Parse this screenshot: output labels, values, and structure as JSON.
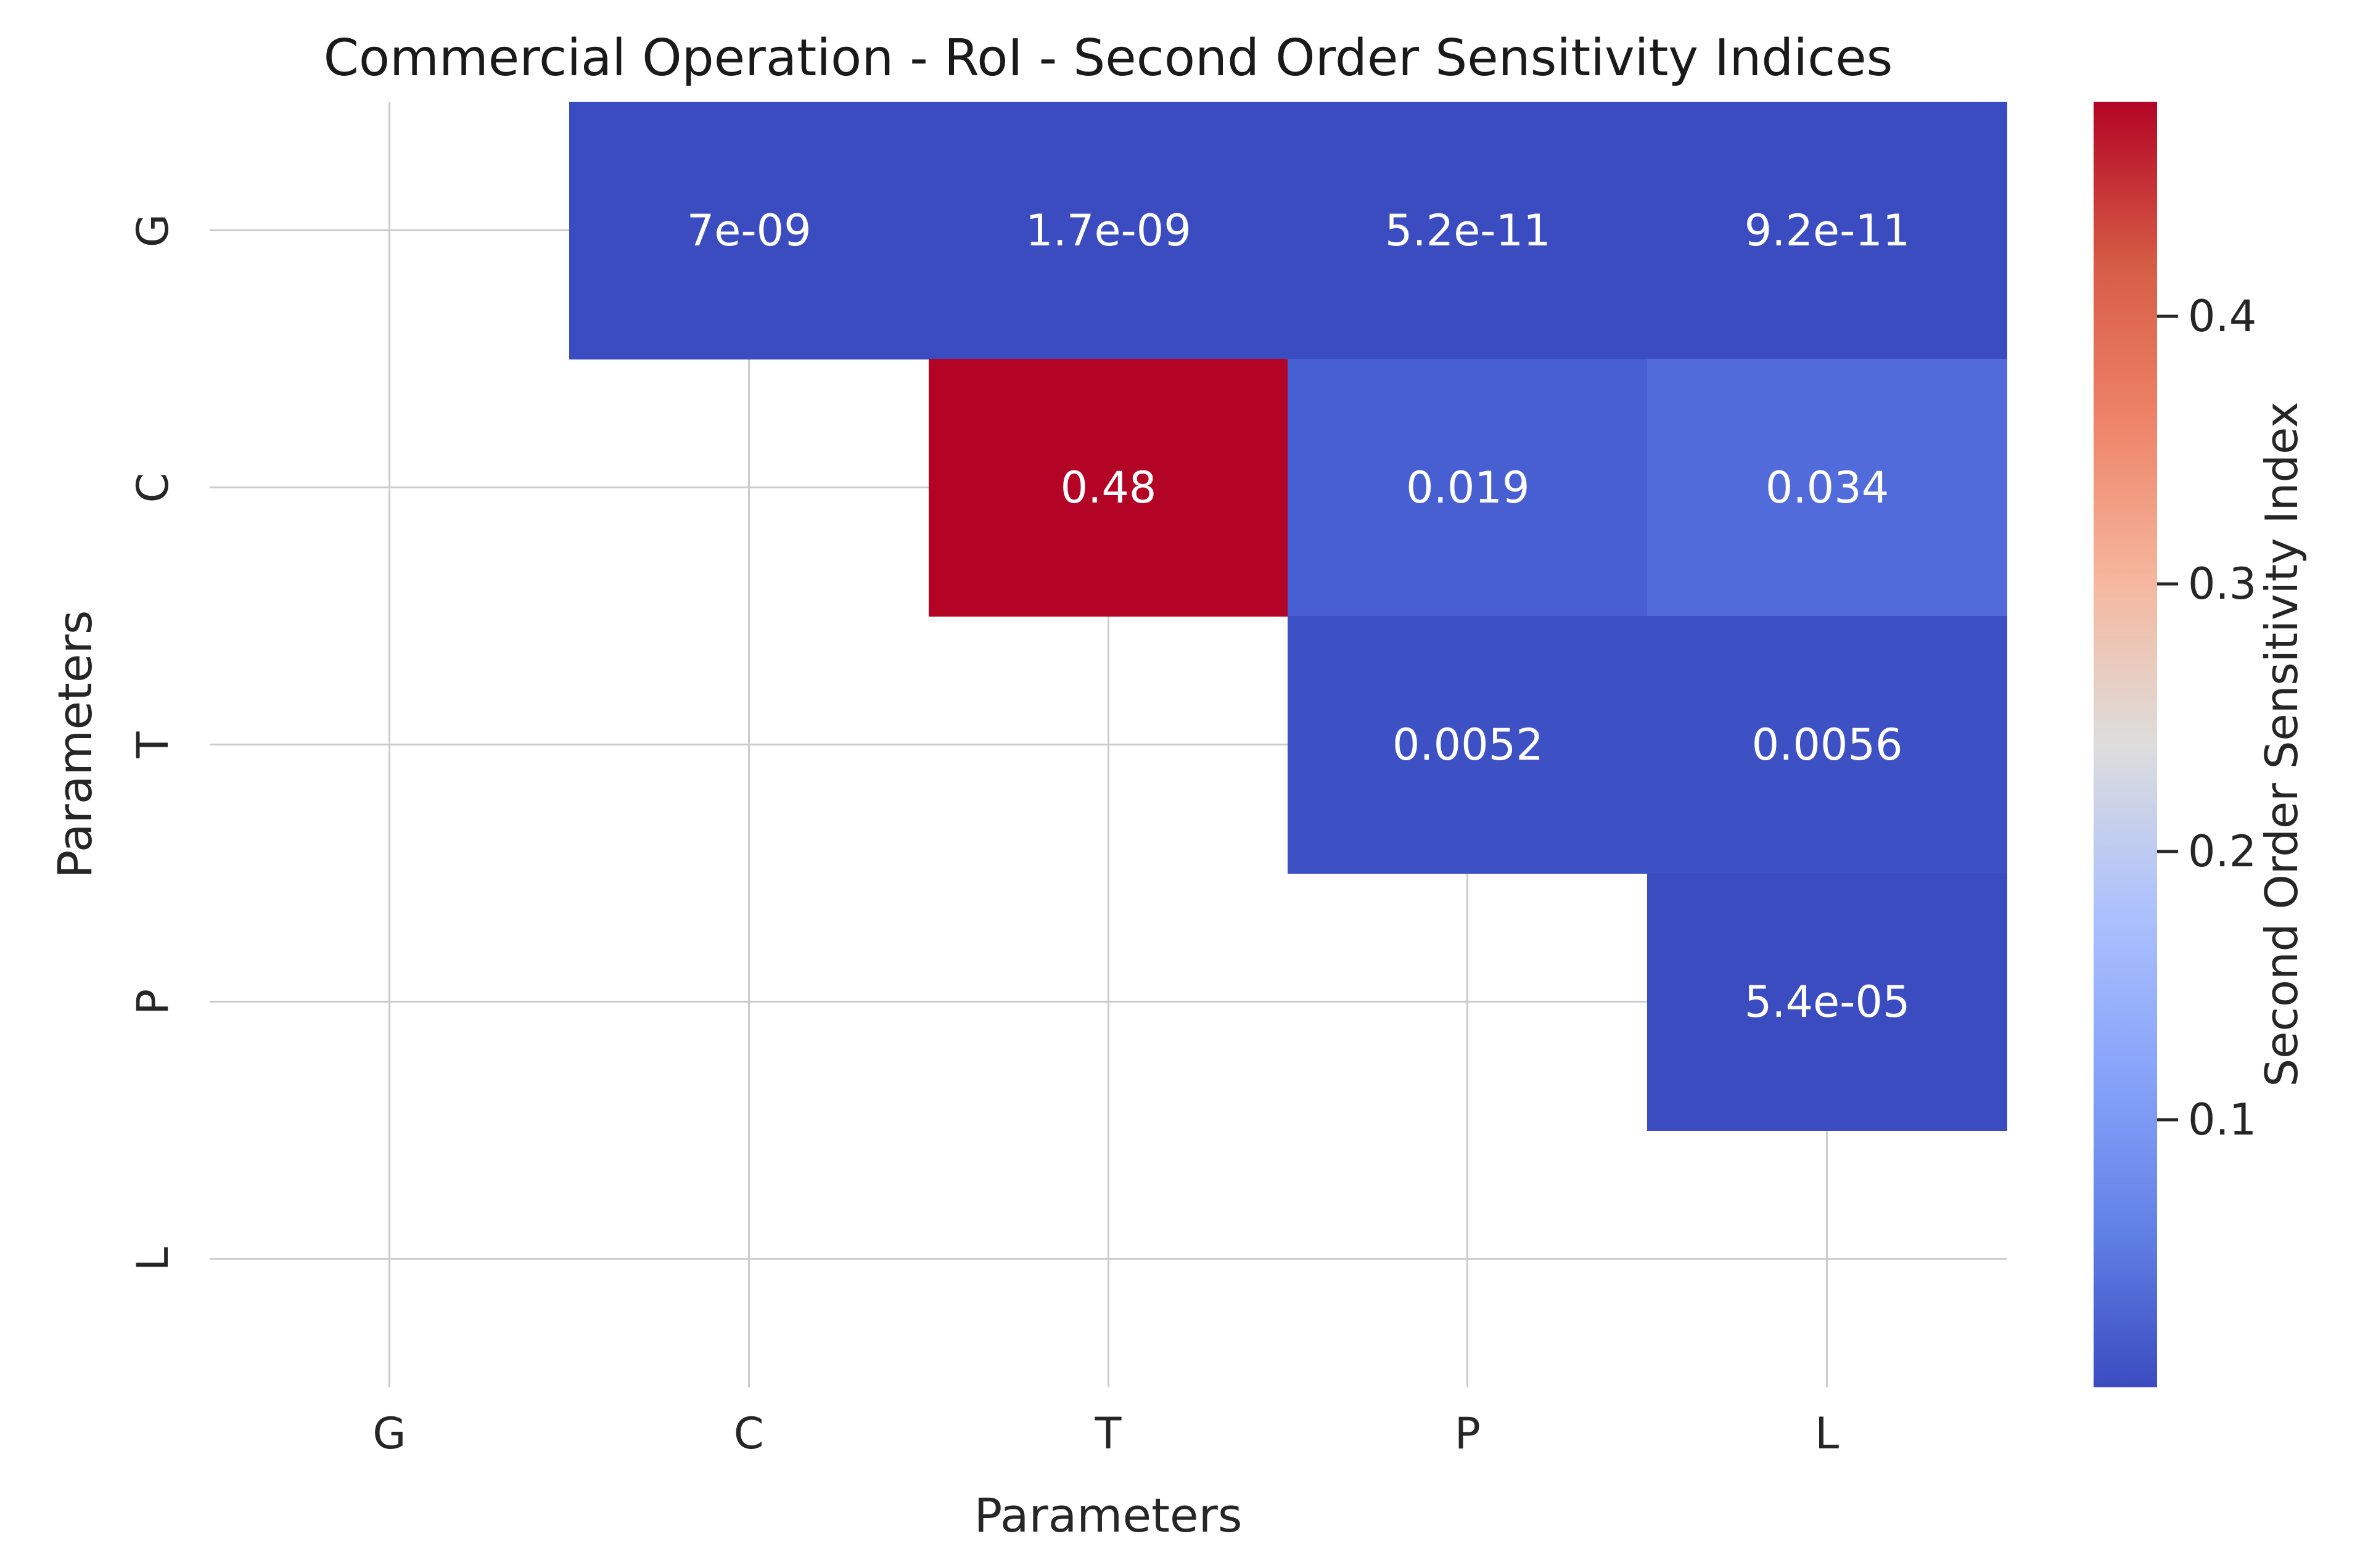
{
  "title": "Commercial Operation - RoI - Second Order Sensitivity Indices",
  "x_axis_label": "Parameters",
  "y_axis_label": "Parameters",
  "colorbar": {
    "label": "Second Order Sensitivity Index",
    "tick_labels": [
      "0.4",
      "0.3",
      "0.2",
      "0.1"
    ],
    "tick_values": [
      0.4,
      0.3,
      0.2,
      0.1
    ],
    "min": 0,
    "max": 0.48,
    "gradient_stops_bottom_to_top": [
      "#3B4CC0",
      "#6282E7",
      "#89A5FA",
      "#AEC2FC",
      "#DDDDDC",
      "#F5B89F",
      "#EE8468",
      "#D55C44",
      "#B40426"
    ]
  },
  "chart_data": {
    "type": "heatmap",
    "title": "Commercial Operation - RoI - Second Order Sensitivity Indices",
    "xlabel": "Parameters",
    "ylabel": "Parameters",
    "x_categories": [
      "G",
      "C",
      "T",
      "P",
      "L"
    ],
    "y_categories": [
      "G",
      "C",
      "T",
      "P",
      "L"
    ],
    "colormap": "coolwarm",
    "vmin": 0,
    "vmax": 0.48,
    "grid": true,
    "grid_color": "#CCCCCC",
    "background": "#FFFFFF",
    "annotation_color": "#FFFFFF",
    "colorbar_label": "Second Order Sensitivity Index",
    "colorbar_ticks": [
      0.1,
      0.2,
      0.3,
      0.4
    ],
    "mask": "lower-triangle-and-diagonal",
    "matrix": [
      [
        null,
        7e-09,
        1.7e-09,
        5.2e-11,
        9.2e-11
      ],
      [
        null,
        null,
        0.48,
        0.019,
        0.034
      ],
      [
        null,
        null,
        null,
        0.0052,
        0.0056
      ],
      [
        null,
        null,
        null,
        null,
        5.4e-05
      ],
      [
        null,
        null,
        null,
        null,
        null
      ]
    ],
    "cells": [
      {
        "row": "G",
        "col": "C",
        "label": "7e-09",
        "value": 7e-09,
        "color": "#3B4CC0"
      },
      {
        "row": "G",
        "col": "T",
        "label": "1.7e-09",
        "value": 1.7e-09,
        "color": "#3B4CC0"
      },
      {
        "row": "G",
        "col": "P",
        "label": "5.2e-11",
        "value": 5.2e-11,
        "color": "#3B4CC0"
      },
      {
        "row": "G",
        "col": "L",
        "label": "9.2e-11",
        "value": 9.2e-11,
        "color": "#3B4CC0"
      },
      {
        "row": "C",
        "col": "T",
        "label": "0.48",
        "value": 0.48,
        "color": "#B40426"
      },
      {
        "row": "C",
        "col": "P",
        "label": "0.019",
        "value": 0.019,
        "color": "#475FD0"
      },
      {
        "row": "C",
        "col": "L",
        "label": "0.034",
        "value": 0.034,
        "color": "#516CDA"
      },
      {
        "row": "T",
        "col": "P",
        "label": "0.0052",
        "value": 0.0052,
        "color": "#3E51C4"
      },
      {
        "row": "T",
        "col": "L",
        "label": "0.0056",
        "value": 0.0056,
        "color": "#3E51C4"
      },
      {
        "row": "P",
        "col": "L",
        "label": "5.4e-05",
        "value": 5.4e-05,
        "color": "#3B4CC0"
      }
    ]
  }
}
